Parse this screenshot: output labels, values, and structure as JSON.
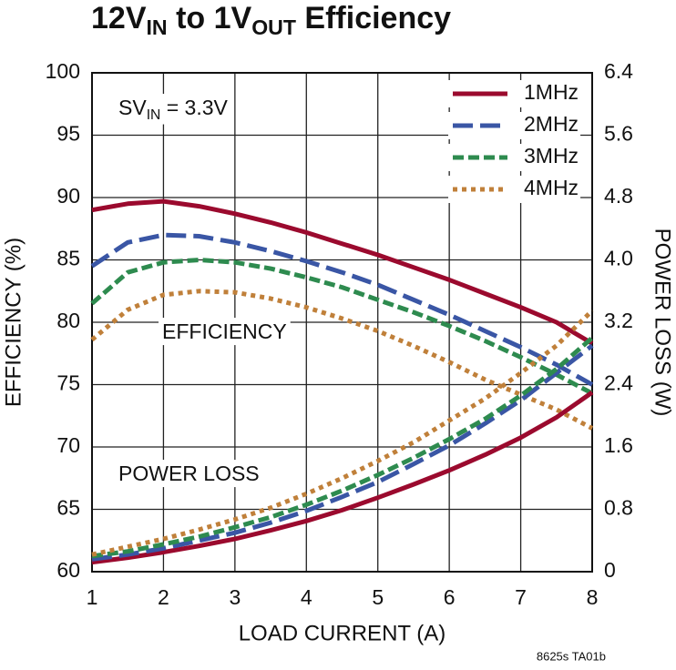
{
  "chart_data": {
    "type": "line",
    "title": [
      {
        "text": "12V"
      },
      {
        "text": "IN",
        "sub": true
      },
      {
        "text": " to 1V"
      },
      {
        "text": "OUT",
        "sub": true
      },
      {
        "text": " Efficiency"
      }
    ],
    "annotations": [
      {
        "parts": [
          {
            "text": "SV"
          },
          {
            "text": "IN",
            "sub": true
          },
          {
            "text": " = 3.3V"
          }
        ]
      },
      {
        "parts": [
          {
            "text": "EFFICIENCY"
          }
        ]
      },
      {
        "parts": [
          {
            "text": "POWER LOSS"
          }
        ]
      }
    ],
    "footnote": "8625s TA01b",
    "x_label": "LOAD CURRENT (A)",
    "y_label": "EFFICIENCY (%)",
    "y2_label": "POWER LOSS (W)",
    "x": [
      1,
      1.5,
      2,
      2.5,
      3,
      3.5,
      4,
      4.5,
      5,
      5.5,
      6,
      6.5,
      7,
      7.5,
      8
    ],
    "xlim": [
      1,
      8
    ],
    "xticks": [
      1,
      2,
      3,
      4,
      5,
      6,
      7,
      8
    ],
    "ylim": [
      60,
      100
    ],
    "yticks": [
      60,
      65,
      70,
      75,
      80,
      85,
      90,
      95,
      100
    ],
    "y2lim": [
      0,
      6.4
    ],
    "y2ticks": [
      0,
      0.8,
      1.6,
      2.4,
      3.2,
      {
        "value": 4,
        "label": "4.0"
      },
      4.8,
      5.6,
      6.4
    ],
    "grid": true,
    "legend": "upper right",
    "series": [
      {
        "name": "1MHz",
        "color": "#9b0a2e",
        "dash": "none",
        "values": [
          89.0,
          89.5,
          89.7,
          89.3,
          88.7,
          88.0,
          87.2,
          86.3,
          85.4,
          84.4,
          83.4,
          82.3,
          81.2,
          80.0,
          78.3
        ]
      },
      {
        "name": "2MHz",
        "color": "#3a56a5",
        "dash": "22 8",
        "values": [
          84.5,
          86.4,
          87.0,
          86.9,
          86.4,
          85.7,
          84.9,
          84.0,
          83.0,
          81.8,
          80.6,
          79.3,
          78.0,
          76.6,
          75.0
        ]
      },
      {
        "name": "3MHz",
        "color": "#2e8b4f",
        "dash": "12 5",
        "values": [
          81.5,
          84.0,
          84.8,
          85.0,
          84.8,
          84.3,
          83.6,
          82.8,
          81.8,
          80.8,
          79.7,
          78.5,
          77.2,
          75.8,
          74.3
        ]
      },
      {
        "name": "4MHz",
        "color": "#c0803a",
        "dash": "5 5",
        "values": [
          78.6,
          81.0,
          82.2,
          82.5,
          82.4,
          81.9,
          81.2,
          80.3,
          79.3,
          78.1,
          76.8,
          75.4,
          74.2,
          73.0,
          71.5
        ]
      },
      {
        "color": "#9b0a2e",
        "dash": "none",
        "axis": "y2",
        "values": [
          0.12,
          0.18,
          0.25,
          0.33,
          0.42,
          0.53,
          0.65,
          0.79,
          0.95,
          1.12,
          1.3,
          1.5,
          1.72,
          1.98,
          2.3
        ]
      },
      {
        "color": "#3a56a5",
        "dash": "22 8",
        "axis": "y2",
        "values": [
          0.16,
          0.22,
          0.3,
          0.4,
          0.5,
          0.63,
          0.78,
          0.96,
          1.15,
          1.38,
          1.62,
          1.9,
          2.2,
          2.55,
          2.9
        ]
      },
      {
        "color": "#2e8b4f",
        "dash": "12 5",
        "axis": "y2",
        "values": [
          0.2,
          0.26,
          0.35,
          0.45,
          0.57,
          0.7,
          0.86,
          1.04,
          1.24,
          1.46,
          1.7,
          1.96,
          2.26,
          2.6,
          3.0
        ]
      },
      {
        "color": "#c0803a",
        "dash": "5 5",
        "axis": "y2",
        "values": [
          0.22,
          0.32,
          0.42,
          0.54,
          0.67,
          0.82,
          1.0,
          1.2,
          1.42,
          1.66,
          1.94,
          2.22,
          2.55,
          2.9,
          3.35
        ]
      }
    ]
  }
}
